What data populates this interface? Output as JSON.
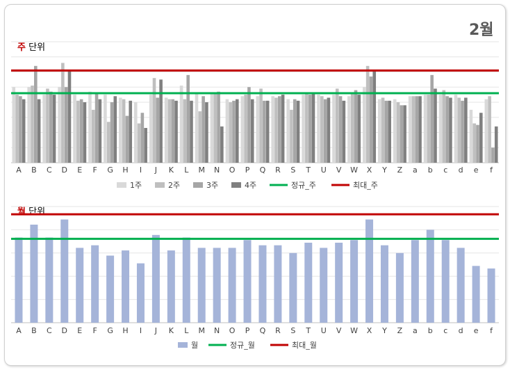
{
  "page": {
    "title": "2월"
  },
  "chart_data": [
    {
      "type": "bar",
      "title_highlight": "주",
      "title_rest": "단위",
      "categories": [
        "A",
        "B",
        "C",
        "D",
        "E",
        "F",
        "G",
        "H",
        "I",
        "J",
        "K",
        "L",
        "M",
        "N",
        "O",
        "P",
        "Q",
        "R",
        "S",
        "T",
        "U",
        "V",
        "W",
        "X",
        "Y",
        "Z",
        "a",
        "b",
        "c",
        "d",
        "e",
        "f"
      ],
      "ylim": [
        0,
        80
      ],
      "grid": true,
      "legend": "bottom",
      "series": [
        {
          "name": "1주",
          "color": "#d9d9d9",
          "values": [
            50,
            50,
            45,
            50,
            45,
            47,
            45,
            43,
            40,
            45,
            43,
            51,
            46,
            46,
            42,
            44,
            44,
            44,
            42,
            45,
            45,
            45,
            44,
            50,
            42,
            42,
            44,
            45,
            45,
            45,
            35,
            42
          ]
        },
        {
          "name": "2주",
          "color": "#bfbfbf",
          "values": [
            45,
            51,
            49,
            66,
            41,
            35,
            27,
            42,
            26,
            56,
            42,
            42,
            34,
            46,
            40,
            45,
            49,
            43,
            35,
            46,
            44,
            49,
            46,
            64,
            43,
            40,
            44,
            45,
            48,
            43,
            26,
            44
          ]
        },
        {
          "name": "3주",
          "color": "#a6a6a6",
          "values": [
            44,
            64,
            47,
            50,
            42,
            46,
            40,
            31,
            33,
            43,
            42,
            58,
            44,
            47,
            41,
            50,
            41,
            44,
            42,
            45,
            42,
            44,
            48,
            57,
            41,
            38,
            44,
            58,
            44,
            41,
            25,
            10
          ]
        },
        {
          "name": "4주",
          "color": "#808080",
          "values": [
            42,
            42,
            45,
            61,
            40,
            42,
            44,
            41,
            23,
            55,
            41,
            41,
            40,
            24,
            42,
            42,
            41,
            45,
            41,
            46,
            43,
            41,
            45,
            61,
            41,
            38,
            44,
            49,
            43,
            43,
            33,
            24
          ]
        }
      ],
      "lines": [
        {
          "name": "정규_주",
          "color": "#00b050",
          "value": 46
        },
        {
          "name": "최대_주",
          "color": "#c00000",
          "value": 61
        }
      ]
    },
    {
      "type": "bar",
      "title_highlight": "월",
      "title_rest": "단위",
      "categories": [
        "A",
        "B",
        "C",
        "D",
        "E",
        "F",
        "G",
        "H",
        "I",
        "J",
        "K",
        "L",
        "M",
        "N",
        "O",
        "P",
        "Q",
        "R",
        "S",
        "T",
        "U",
        "V",
        "W",
        "X",
        "Y",
        "Z",
        "a",
        "b",
        "c",
        "d",
        "e",
        "f"
      ],
      "ylim": [
        0,
        45
      ],
      "grid": true,
      "legend": "bottom",
      "series": [
        {
          "name": "월",
          "color": "#a5b4d9",
          "values": [
            33,
            38,
            33,
            40,
            29,
            30,
            26,
            28,
            23,
            34,
            28,
            33,
            29,
            29,
            29,
            32,
            30,
            30,
            27,
            31,
            29,
            31,
            32,
            40,
            30,
            27,
            32,
            36,
            32,
            29,
            22,
            21
          ]
        }
      ],
      "lines": [
        {
          "name": "정규_월",
          "color": "#00b050",
          "value": 32.5
        },
        {
          "name": "최대_월",
          "color": "#c00000",
          "value": 42
        }
      ]
    }
  ]
}
